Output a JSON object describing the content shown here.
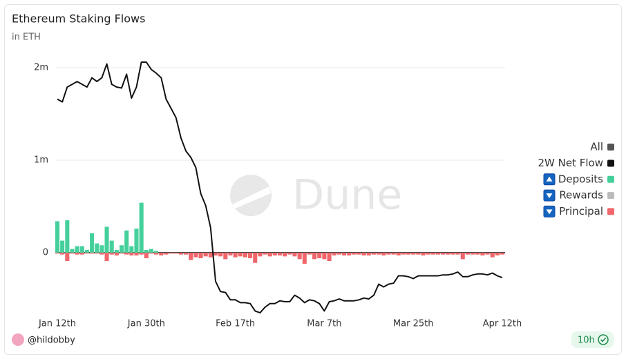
{
  "chart_data": {
    "type": "bar-line",
    "title": "Ethereum Staking Flows",
    "subtitle": "in ETH",
    "watermark": "Dune",
    "author": "@hildobby",
    "refresh_label": "10h",
    "legend_all": "All",
    "legend_all_color": "#555555",
    "categories": [
      "Jan 12th",
      null,
      null,
      null,
      null,
      null,
      null,
      null,
      null,
      null,
      null,
      null,
      null,
      null,
      null,
      null,
      null,
      null,
      "Jan 30th",
      null,
      null,
      null,
      null,
      null,
      null,
      null,
      null,
      null,
      null,
      null,
      null,
      null,
      null,
      null,
      null,
      null,
      "Feb 17th",
      null,
      null,
      null,
      null,
      null,
      null,
      null,
      null,
      null,
      null,
      null,
      null,
      null,
      null,
      null,
      null,
      null,
      "Mar 7th",
      null,
      null,
      null,
      null,
      null,
      null,
      null,
      null,
      null,
      null,
      null,
      null,
      null,
      null,
      null,
      null,
      null,
      "Mar 25th",
      null,
      null,
      null,
      null,
      null,
      null,
      null,
      null,
      null,
      null,
      null,
      null,
      null,
      null,
      null,
      null,
      null,
      "Apr 12th"
    ],
    "ylim": [
      -700000,
      2100000
    ],
    "yticks": [
      0,
      {
        "value": 1000000,
        "label": "1m"
      },
      {
        "value": 2000000,
        "label": "2m"
      }
    ],
    "grid": true,
    "legend": "right",
    "series": [
      {
        "name": "2W Net Flow",
        "kind": "line",
        "color": "#111111",
        "values": [
          1660000,
          1630000,
          1790000,
          1820000,
          1850000,
          1820000,
          1790000,
          1890000,
          1850000,
          1890000,
          2040000,
          1820000,
          1790000,
          1780000,
          1930000,
          1670000,
          1790000,
          2060000,
          2060000,
          1980000,
          1940000,
          1890000,
          1660000,
          1560000,
          1460000,
          1240000,
          1100000,
          1030000,
          920000,
          640000,
          510000,
          270000,
          -310000,
          -420000,
          -430000,
          -510000,
          -510000,
          -540000,
          -540000,
          -550000,
          -630000,
          -650000,
          -590000,
          -550000,
          -550000,
          -520000,
          -530000,
          -530000,
          -460000,
          -490000,
          -540000,
          -510000,
          -520000,
          -550000,
          -630000,
          -530000,
          -520000,
          -500000,
          -520000,
          -520000,
          -520000,
          -510000,
          -490000,
          -500000,
          -460000,
          -340000,
          -370000,
          -340000,
          -330000,
          -250000,
          -250000,
          -260000,
          -280000,
          -250000,
          -250000,
          -250000,
          -250000,
          -250000,
          -240000,
          -240000,
          -230000,
          -210000,
          -260000,
          -260000,
          -240000,
          -230000,
          -230000,
          -240000,
          -220000,
          -250000,
          -270000
        ]
      },
      {
        "name": "Deposits",
        "kind": "bar",
        "color": "#45d09b",
        "values": [
          340000,
          130000,
          350000,
          40000,
          70000,
          70000,
          30000,
          210000,
          100000,
          80000,
          280000,
          130000,
          30000,
          80000,
          240000,
          70000,
          260000,
          540000,
          30000,
          40000,
          20000,
          0,
          0,
          0,
          0,
          0,
          0,
          0,
          0,
          0,
          0,
          0,
          0,
          0,
          0,
          0,
          0,
          0,
          0,
          0,
          0,
          0,
          0,
          0,
          0,
          0,
          0,
          0,
          0,
          0,
          0,
          0,
          0,
          0,
          0,
          0,
          0,
          0,
          0,
          0,
          0,
          0,
          0,
          0,
          0,
          0,
          0,
          0,
          0,
          0,
          0,
          0,
          0,
          0,
          0,
          0,
          0,
          0,
          0,
          0,
          0,
          0,
          0,
          0,
          0,
          0,
          0,
          0,
          0,
          0,
          0
        ]
      },
      {
        "name": "Rewards",
        "kind": "bar",
        "color": "#bbbbbb",
        "values": [
          0,
          0,
          0,
          0,
          0,
          0,
          0,
          0,
          0,
          0,
          0,
          0,
          0,
          0,
          0,
          0,
          0,
          0,
          0,
          0,
          0,
          0,
          0,
          0,
          0,
          0,
          0,
          0,
          0,
          0,
          0,
          0,
          0,
          0,
          0,
          0,
          0,
          0,
          0,
          0,
          0,
          0,
          0,
          0,
          0,
          0,
          0,
          0,
          0,
          0,
          0,
          0,
          0,
          0,
          0,
          0,
          0,
          0,
          0,
          0,
          0,
          0,
          0,
          0,
          0,
          0,
          0,
          0,
          0,
          0,
          0,
          0,
          0,
          0,
          0,
          0,
          0,
          0,
          0,
          0,
          0,
          0,
          0,
          0,
          0,
          0,
          0,
          0,
          0,
          0,
          0
        ]
      },
      {
        "name": "Principal",
        "kind": "bar",
        "color": "#f0666a",
        "values": [
          -10000,
          -20000,
          -90000,
          -10000,
          -20000,
          -20000,
          -10000,
          -10000,
          -10000,
          -20000,
          -90000,
          -20000,
          -30000,
          -10000,
          -20000,
          -30000,
          -30000,
          -20000,
          -60000,
          -10000,
          -20000,
          -30000,
          -20000,
          -10000,
          -10000,
          -20000,
          -20000,
          -80000,
          -50000,
          -60000,
          -40000,
          -50000,
          -30000,
          -40000,
          -70000,
          -30000,
          -50000,
          -40000,
          -50000,
          -60000,
          -110000,
          -40000,
          -20000,
          -40000,
          -30000,
          -30000,
          -40000,
          -20000,
          -40000,
          -70000,
          -120000,
          -20000,
          -70000,
          -60000,
          -70000,
          -90000,
          -30000,
          -20000,
          -30000,
          -30000,
          -20000,
          -20000,
          -30000,
          -30000,
          -20000,
          -20000,
          -30000,
          -20000,
          -20000,
          -30000,
          -20000,
          -20000,
          -20000,
          -20000,
          -30000,
          -20000,
          -20000,
          -20000,
          -20000,
          -20000,
          -20000,
          -20000,
          -70000,
          -20000,
          -20000,
          -20000,
          -30000,
          -20000,
          -50000,
          -30000,
          -20000
        ]
      }
    ]
  }
}
